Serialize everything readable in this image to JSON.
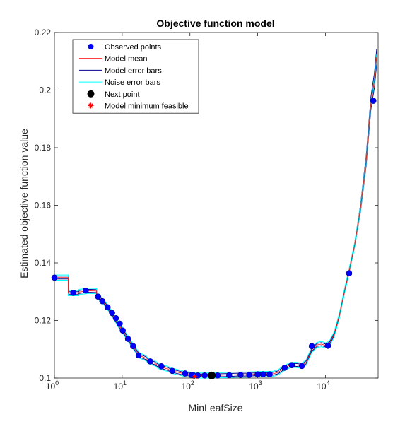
{
  "chart_data": {
    "type": "line",
    "title": "Objective function model",
    "xlabel": "MinLeafSize",
    "ylabel": "Estimated objective function value",
    "x_scale": "log",
    "xlim": [
      1,
      60000
    ],
    "ylim": [
      0.1,
      0.22
    ],
    "x_ticks": [
      {
        "value": 1,
        "base": "10",
        "exp": "0"
      },
      {
        "value": 10,
        "base": "10",
        "exp": "1"
      },
      {
        "value": 100,
        "base": "10",
        "exp": "2"
      },
      {
        "value": 1000,
        "base": "10",
        "exp": "3"
      },
      {
        "value": 10000,
        "base": "10",
        "exp": "4"
      }
    ],
    "y_ticks": [
      "0.1",
      "0.12",
      "0.14",
      "0.16",
      "0.18",
      "0.2",
      "0.22"
    ],
    "grid": false,
    "legend_position": "top-left",
    "legend": [
      {
        "label": "Observed points",
        "kind": "marker-dot",
        "color": "#0000ff"
      },
      {
        "label": "Model mean",
        "kind": "line",
        "color": "#ff0000"
      },
      {
        "label": "Model error bars",
        "kind": "line",
        "color": "#00008b"
      },
      {
        "label": "Noise error bars",
        "kind": "line",
        "color": "#00ffff"
      },
      {
        "label": "Next point",
        "kind": "marker-dot",
        "color": "#000000"
      },
      {
        "label": "Model minimum feasible",
        "kind": "marker-star",
        "color": "#ff0000"
      }
    ],
    "model_mean": [
      [
        1,
        0.1349
      ],
      [
        1.6,
        0.1349
      ],
      [
        1.6,
        0.1295
      ],
      [
        2.3,
        0.1295
      ],
      [
        2.3,
        0.1299
      ],
      [
        3.2,
        0.1303
      ],
      [
        4.2,
        0.1302
      ],
      [
        4.2,
        0.1288
      ],
      [
        5.3,
        0.1265
      ],
      [
        6.2,
        0.1243
      ],
      [
        7.5,
        0.1213
      ],
      [
        8.8,
        0.1185
      ],
      [
        10.3,
        0.1163
      ],
      [
        12.5,
        0.1133
      ],
      [
        15,
        0.1105
      ],
      [
        18,
        0.1078
      ],
      [
        22,
        0.107
      ],
      [
        25,
        0.1058
      ],
      [
        30,
        0.1052
      ],
      [
        35,
        0.1041
      ],
      [
        45,
        0.1033
      ],
      [
        55,
        0.1025
      ],
      [
        70,
        0.1019
      ],
      [
        85,
        0.1014
      ],
      [
        100,
        0.1012
      ],
      [
        120,
        0.1009
      ],
      [
        150,
        0.1009
      ],
      [
        200,
        0.1009
      ],
      [
        250,
        0.101
      ],
      [
        300,
        0.101
      ],
      [
        400,
        0.1011
      ],
      [
        500,
        0.1012
      ],
      [
        700,
        0.1012
      ],
      [
        900,
        0.1013
      ],
      [
        1100,
        0.1014
      ],
      [
        1400,
        0.1014
      ],
      [
        1700,
        0.1015
      ],
      [
        2000,
        0.102
      ],
      [
        2400,
        0.1033
      ],
      [
        3000,
        0.1045
      ],
      [
        3600,
        0.1046
      ],
      [
        4500,
        0.1043
      ],
      [
        5200,
        0.1055
      ],
      [
        6300,
        0.1098
      ],
      [
        7500,
        0.1115
      ],
      [
        8800,
        0.1118
      ],
      [
        10000,
        0.1113
      ],
      [
        11500,
        0.112
      ],
      [
        13500,
        0.1152
      ],
      [
        16000,
        0.1215
      ],
      [
        19000,
        0.1298
      ],
      [
        22000,
        0.1363
      ],
      [
        27000,
        0.1462
      ],
      [
        33000,
        0.159
      ],
      [
        40000,
        0.1755
      ],
      [
        47000,
        0.1955
      ],
      [
        53000,
        0.2035
      ],
      [
        57000,
        0.2115
      ]
    ],
    "observed_points": [
      [
        1,
        0.1349
      ],
      [
        1.9,
        0.1296
      ],
      [
        2.9,
        0.1304
      ],
      [
        4.4,
        0.1283
      ],
      [
        5.1,
        0.1267
      ],
      [
        6.1,
        0.1246
      ],
      [
        7.1,
        0.1226
      ],
      [
        8.1,
        0.1208
      ],
      [
        9.2,
        0.1189
      ],
      [
        10.2,
        0.1165
      ],
      [
        12.2,
        0.1136
      ],
      [
        14.5,
        0.1111
      ],
      [
        17.5,
        0.1079
      ],
      [
        26,
        0.1058
      ],
      [
        38,
        0.1041
      ],
      [
        55,
        0.1025
      ],
      [
        85,
        0.1016
      ],
      [
        106,
        0.1011
      ],
      [
        112,
        0.101
      ],
      [
        131,
        0.1009
      ],
      [
        165,
        0.1009
      ],
      [
        256,
        0.1009
      ],
      [
        380,
        0.101
      ],
      [
        560,
        0.1011
      ],
      [
        750,
        0.1011
      ],
      [
        1000,
        0.1013
      ],
      [
        1200,
        0.1013
      ],
      [
        1500,
        0.1013
      ],
      [
        2500,
        0.1036
      ],
      [
        3200,
        0.1045
      ],
      [
        4500,
        0.1042
      ],
      [
        6300,
        0.1111
      ],
      [
        10900,
        0.1112
      ],
      [
        22400,
        0.1364
      ],
      [
        51000,
        0.1963
      ]
    ],
    "next_point": [
      210,
      0.1009
    ],
    "model_minimum_feasible": [
      118,
      0.1005
    ]
  }
}
